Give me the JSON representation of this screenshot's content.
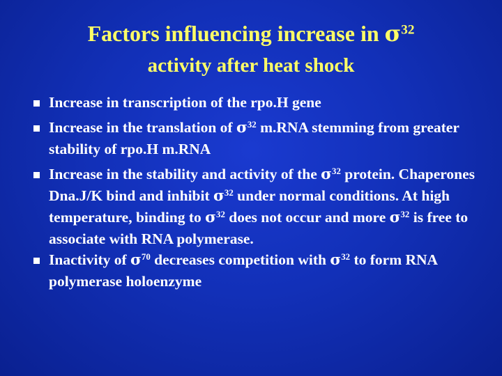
{
  "slide": {
    "title_line1_text": "Factors influencing increase in ",
    "title_sigma": "σ",
    "title_sup": "32",
    "title_line2": "activity after heat shock",
    "bullets": [
      {
        "parts": [
          "Increase in transcription of the rpo.H gene"
        ]
      },
      {
        "parts": [
          "Increase in the translation of ",
          "σ",
          "32",
          " m.RNA stemming from greater stability of rpo.H m.RNA"
        ]
      },
      {
        "parts": [
          "Increase in the stability and activity of the ",
          "σ",
          "32",
          " protein.  Chaperones Dna.J/K bind and inhibit ",
          "σ",
          "32",
          " under normal conditions.  At high temperature, binding to ",
          "σ",
          "32",
          " does not occur and more ",
          "σ",
          "32",
          " is free to associate with RNA polymerase."
        ]
      },
      {
        "parts": [
          "Inactivity of ",
          "σ",
          "70",
          " decreases competition with ",
          "σ",
          "32",
          " to form RNA polymerase holoenzyme"
        ]
      }
    ]
  }
}
